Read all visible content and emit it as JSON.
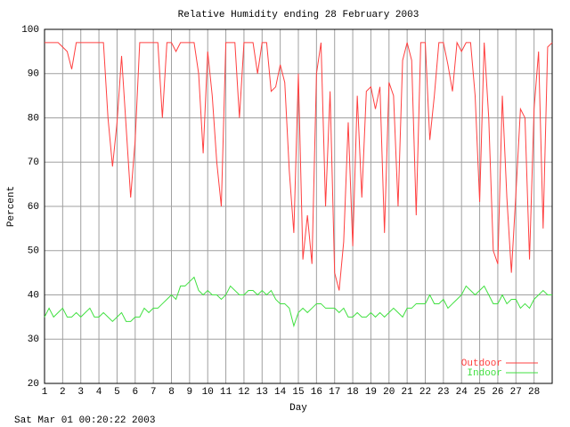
{
  "chart_data": {
    "type": "line",
    "title": "Relative Humidity ending 28 February 2003",
    "x_label": "Day",
    "y_label": "Percent",
    "footer": "Sat Mar 01 00:20:22 2003",
    "x": [
      1,
      1.25,
      1.5,
      1.75,
      2,
      2.25,
      2.5,
      2.75,
      3,
      3.25,
      3.5,
      3.75,
      4,
      4.25,
      4.5,
      4.75,
      5,
      5.25,
      5.5,
      5.75,
      6,
      6.25,
      6.5,
      6.75,
      7,
      7.25,
      7.5,
      7.75,
      8,
      8.25,
      8.5,
      8.75,
      9,
      9.25,
      9.5,
      9.75,
      10,
      10.25,
      10.5,
      10.75,
      11,
      11.25,
      11.5,
      11.75,
      12,
      12.25,
      12.5,
      12.75,
      13,
      13.25,
      13.5,
      13.75,
      14,
      14.25,
      14.5,
      14.75,
      15,
      15.25,
      15.5,
      15.75,
      16,
      16.25,
      16.5,
      16.75,
      17,
      17.25,
      17.5,
      17.75,
      18,
      18.25,
      18.5,
      18.75,
      19,
      19.25,
      19.5,
      19.75,
      20,
      20.25,
      20.5,
      20.75,
      21,
      21.25,
      21.5,
      21.75,
      22,
      22.25,
      22.5,
      22.75,
      23,
      23.25,
      23.5,
      23.75,
      24,
      24.25,
      24.5,
      24.75,
      25,
      25.25,
      25.5,
      25.75,
      26,
      26.25,
      26.5,
      26.75,
      27,
      27.25,
      27.5,
      27.75,
      28,
      28.25,
      28.5,
      28.75,
      29
    ],
    "series": [
      {
        "name": "Outdoor",
        "color": "#ff4040",
        "values": [
          97,
          97,
          97,
          97,
          96,
          95,
          91,
          97,
          97,
          97,
          97,
          97,
          97,
          97,
          80,
          69,
          79,
          94,
          78,
          62,
          75,
          97,
          97,
          97,
          97,
          97,
          80,
          97,
          97,
          95,
          97,
          97,
          97,
          97,
          90,
          72,
          95,
          85,
          70,
          60,
          97,
          97,
          97,
          80,
          97,
          97,
          97,
          90,
          97,
          97,
          86,
          87,
          92,
          88,
          68,
          54,
          90,
          48,
          58,
          47,
          90,
          97,
          60,
          86,
          45,
          41,
          52,
          79,
          51,
          85,
          62,
          86,
          87,
          82,
          87,
          54,
          88,
          85,
          60,
          93,
          97,
          93,
          58,
          97,
          97,
          75,
          85,
          97,
          97,
          92,
          86,
          97,
          95,
          97,
          97,
          85,
          61,
          97,
          80,
          50,
          47,
          85,
          62,
          45,
          63,
          82,
          80,
          48,
          82,
          95,
          55,
          96,
          97
        ]
      },
      {
        "name": "Indoor",
        "color": "#40e040",
        "values": [
          35,
          37,
          35,
          36,
          37,
          35,
          35,
          36,
          35,
          36,
          37,
          35,
          35,
          36,
          35,
          34,
          35,
          36,
          34,
          34,
          35,
          35,
          37,
          36,
          37,
          37,
          38,
          39,
          40,
          39,
          42,
          42,
          43,
          44,
          41,
          40,
          41,
          40,
          40,
          39,
          40,
          42,
          41,
          40,
          40,
          41,
          41,
          40,
          41,
          40,
          41,
          39,
          38,
          38,
          37,
          33,
          36,
          37,
          36,
          37,
          38,
          38,
          37,
          37,
          37,
          36,
          37,
          35,
          35,
          36,
          35,
          35,
          36,
          35,
          36,
          35,
          36,
          37,
          36,
          35,
          37,
          37,
          38,
          38,
          38,
          40,
          38,
          38,
          39,
          37,
          38,
          39,
          40,
          42,
          41,
          40,
          41,
          42,
          40,
          38,
          38,
          40,
          38,
          39,
          39,
          37,
          38,
          37,
          39,
          40,
          41,
          40,
          40
        ]
      }
    ],
    "xlim": [
      1,
      29
    ],
    "ylim": [
      20,
      100
    ],
    "xticks": [
      1,
      2,
      3,
      4,
      5,
      6,
      7,
      8,
      9,
      10,
      11,
      12,
      13,
      14,
      15,
      16,
      17,
      18,
      19,
      20,
      21,
      22,
      23,
      24,
      25,
      26,
      27,
      28
    ],
    "yticks": [
      20,
      30,
      40,
      50,
      60,
      70,
      80,
      90,
      100
    ],
    "grid": true,
    "legend": "lower right"
  }
}
